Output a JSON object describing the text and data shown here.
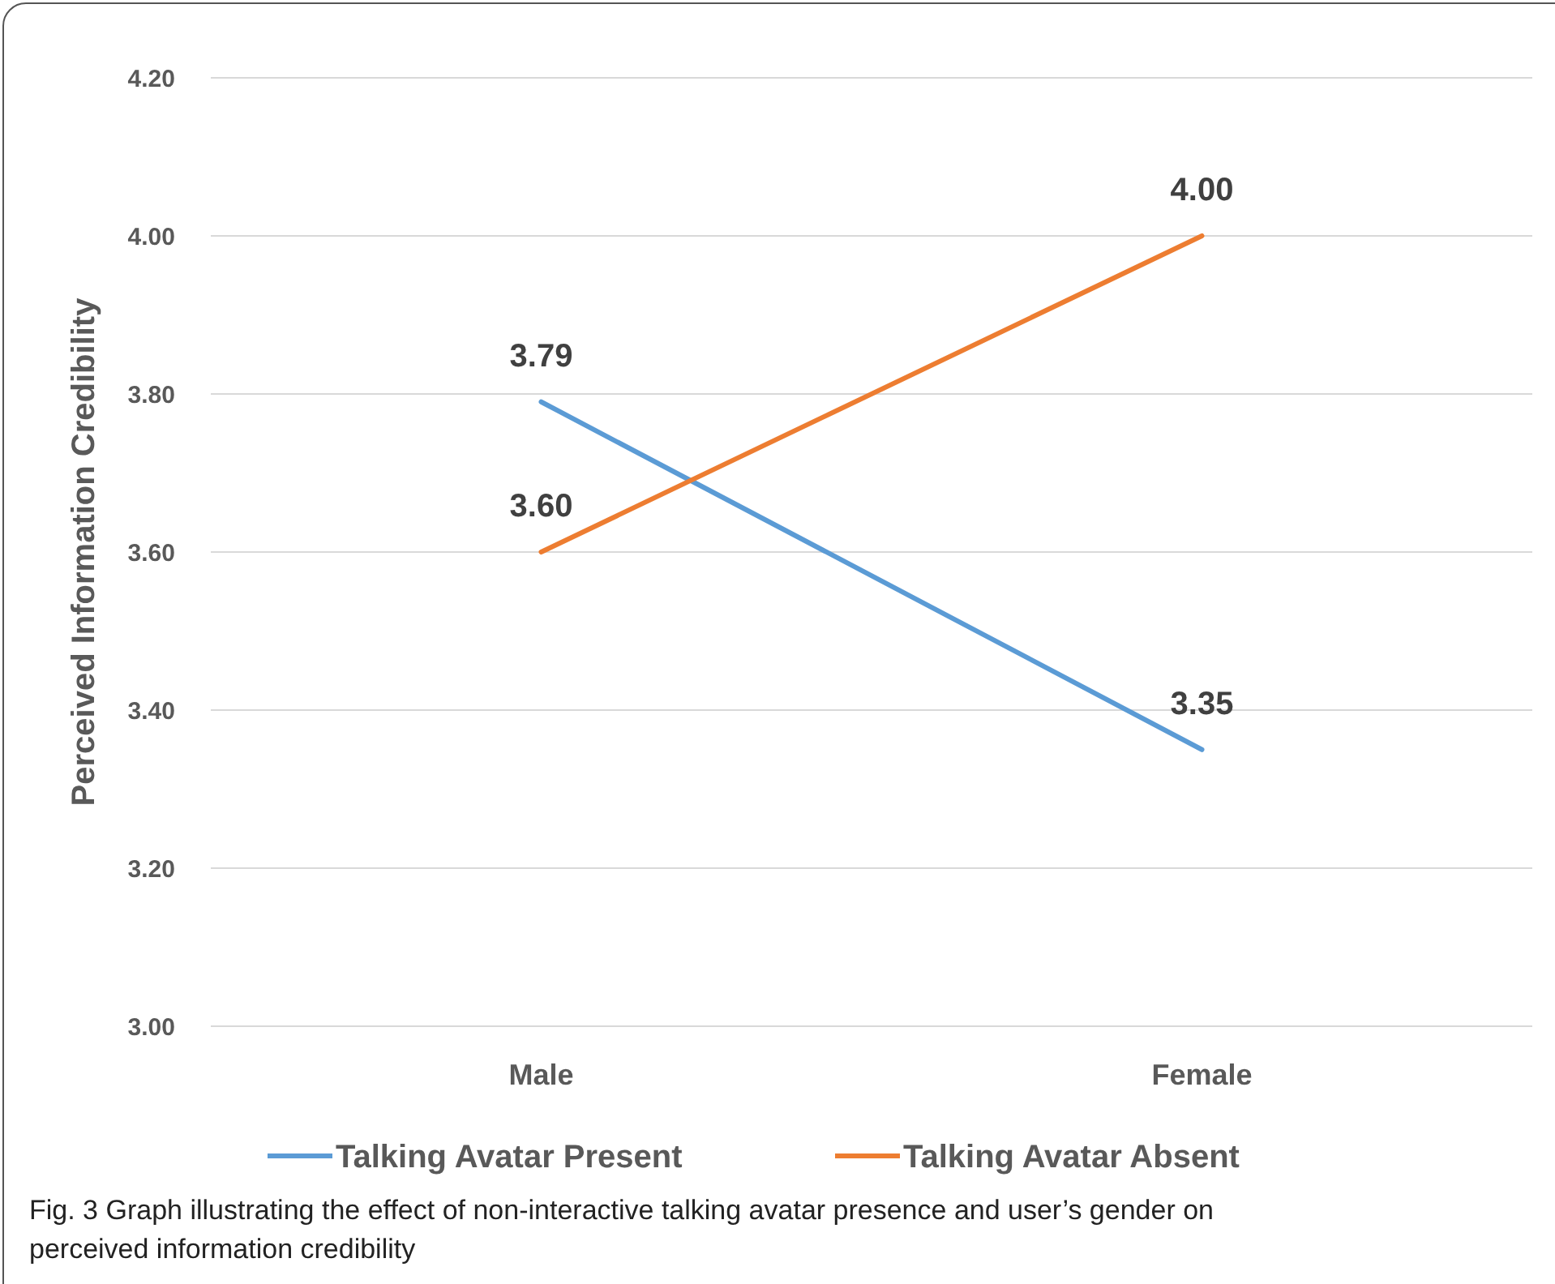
{
  "chart_data": {
    "type": "line",
    "ylabel": "Perceived Information Credibility",
    "categories": [
      "Male",
      "Female"
    ],
    "series": [
      {
        "name": "Talking Avatar Present",
        "color": "#5b9bd5",
        "values": [
          3.79,
          3.35
        ],
        "value_labels": [
          "3.79",
          "3.35"
        ]
      },
      {
        "name": "Talking Avatar Absent",
        "color": "#ed7d31",
        "values": [
          3.6,
          4.0
        ],
        "value_labels": [
          "3.60",
          "4.00"
        ]
      }
    ],
    "ylim": [
      3.0,
      4.2
    ],
    "yticks": [
      {
        "value": 3.0,
        "label": "3.00"
      },
      {
        "value": 3.2,
        "label": "3.20"
      },
      {
        "value": 3.4,
        "label": "3.40"
      },
      {
        "value": 3.6,
        "label": "3.60"
      },
      {
        "value": 3.8,
        "label": "3.80"
      },
      {
        "value": 4.0,
        "label": "4.00"
      },
      {
        "value": 4.2,
        "label": "4.20"
      }
    ],
    "grid": "y",
    "legend": "bottom",
    "marker": "none",
    "line_style": "solid",
    "annotations": [
      "Fig. 3  Graph illustrating the effect of non-interactive talking avatar presence and user’s gender on perceived information credibility"
    ]
  }
}
